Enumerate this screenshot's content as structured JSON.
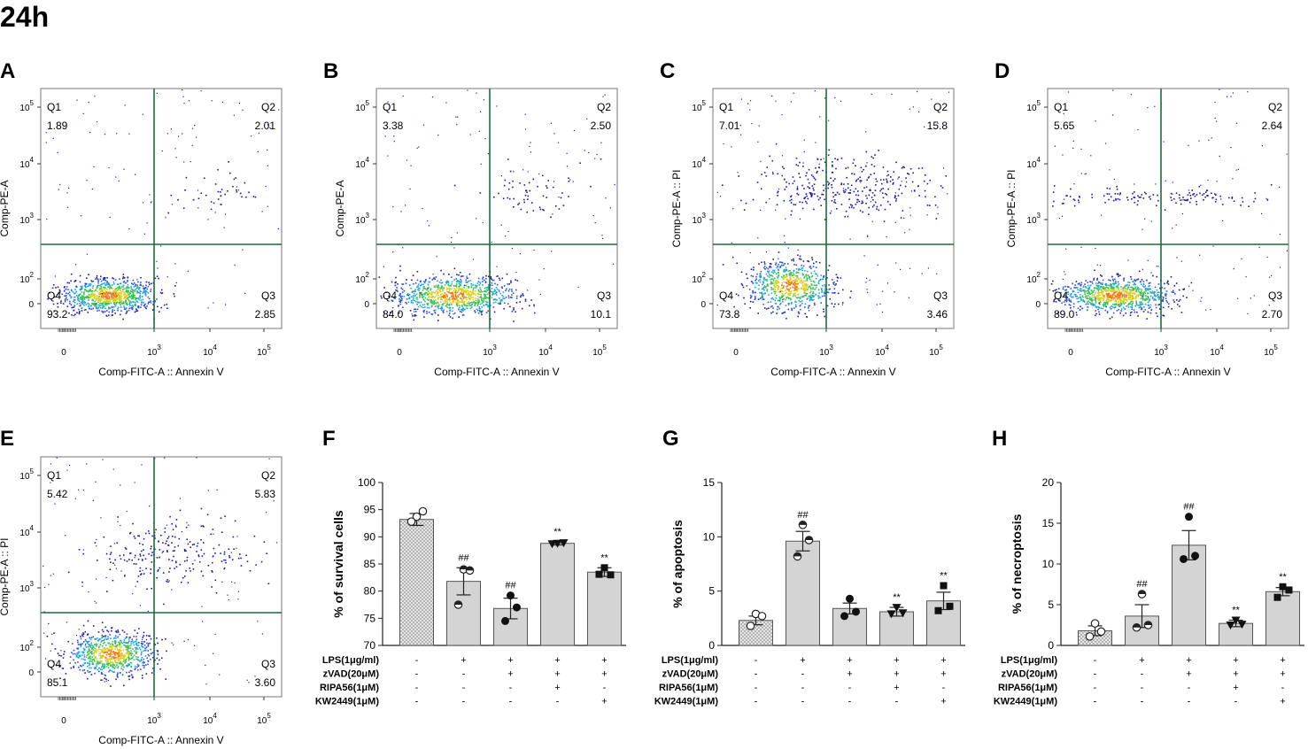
{
  "figure_title": "24h",
  "flow_common": {
    "quadrant_names": [
      "Q1",
      "Q2",
      "Q3",
      "Q4"
    ],
    "x_label": "Comp-FITC-A :: Annexin V",
    "x_ticks": [
      "0",
      "10",
      "10",
      "10"
    ],
    "x_tick_exps": [
      "",
      "3",
      "4",
      "5"
    ],
    "y_ticks": [
      "0",
      "10",
      "10",
      "10",
      "10"
    ],
    "y_tick_exps": [
      "",
      "2",
      "3",
      "4",
      "5"
    ]
  },
  "flow_panels": [
    {
      "letter": "A",
      "y_label": "Comp-PE-A",
      "q1": "1.89",
      "q2": "2.01",
      "q3": "2.85",
      "q4": "93.2"
    },
    {
      "letter": "B",
      "y_label": "Comp-PE-A",
      "q1": "3.38",
      "q2": "2.50",
      "q3": "10.1",
      "q4": "84.0"
    },
    {
      "letter": "C",
      "y_label": "Comp-PE-A :: PI",
      "q1": "7.01",
      "q2": "15.8",
      "q3": "3.46",
      "q4": "73.8"
    },
    {
      "letter": "D",
      "y_label": "Comp-PE-A :: PI",
      "q1": "5.65",
      "q2": "2.64",
      "q3": "2.70",
      "q4": "89.0"
    },
    {
      "letter": "E",
      "y_label": "Comp-PE-A :: PI",
      "q1": "5.42",
      "q2": "5.83",
      "q3": "3.60",
      "q4": "85.1"
    }
  ],
  "treatments": {
    "labels": [
      "LPS(1μg/ml)",
      "zVAD(20μM)",
      "RIPA56(1μM)",
      "KW2449(1μM)"
    ],
    "signs": [
      [
        "-",
        "+",
        "+",
        "+",
        "+"
      ],
      [
        "-",
        "-",
        "+",
        "+",
        "+"
      ],
      [
        "-",
        "-",
        "-",
        "+",
        "-"
      ],
      [
        "-",
        "-",
        "-",
        "-",
        "+"
      ]
    ]
  },
  "chart_data": [
    {
      "panel": "F",
      "type": "bar",
      "ylabel": "% of survival cells",
      "ylim": [
        70,
        100
      ],
      "yticks": [
        70,
        75,
        80,
        85,
        90,
        95,
        100
      ],
      "values": [
        93.2,
        81.8,
        76.8,
        88.8,
        83.5
      ],
      "errors": [
        1.1,
        2.5,
        1.9,
        0.3,
        0.8
      ],
      "points": [
        [
          93.7,
          94.7,
          92.8
        ],
        [
          84.0,
          83.8,
          77.5
        ],
        [
          79.2,
          77.0,
          74.5
        ],
        [
          88.8,
          88.9,
          88.7
        ],
        [
          84.3,
          83.0,
          83.1
        ]
      ],
      "markers": [
        "open-circle",
        "half-circle",
        "filled-circle",
        "triangle",
        "square"
      ],
      "annotations": [
        "",
        "##",
        "##",
        "**",
        "**"
      ]
    },
    {
      "panel": "G",
      "type": "bar",
      "ylabel": "% of apoptosis",
      "ylim": [
        0,
        15
      ],
      "yticks": [
        0,
        5,
        10,
        15
      ],
      "values": [
        2.3,
        9.6,
        3.4,
        3.1,
        4.1
      ],
      "errors": [
        0.4,
        0.9,
        0.5,
        0.4,
        0.8
      ],
      "points": [
        [
          2.9,
          2.7,
          1.8
        ],
        [
          11.1,
          9.7,
          8.2
        ],
        [
          4.3,
          3.1,
          2.7
        ],
        [
          3.5,
          3.0,
          2.9
        ],
        [
          5.5,
          3.6,
          3.2
        ]
      ],
      "markers": [
        "open-circle",
        "half-circle",
        "filled-circle",
        "triangle",
        "square"
      ],
      "annotations": [
        "",
        "##",
        "",
        "**",
        "**"
      ]
    },
    {
      "panel": "H",
      "type": "bar",
      "ylabel": "% of necroptosis",
      "ylim": [
        0,
        20
      ],
      "yticks": [
        0,
        5,
        10,
        15,
        20
      ],
      "values": [
        1.8,
        3.6,
        12.3,
        2.7,
        6.6
      ],
      "errors": [
        0.6,
        1.4,
        1.8,
        0.4,
        0.5
      ],
      "points": [
        [
          2.7,
          1.7,
          1.1
        ],
        [
          6.3,
          2.5,
          2.2
        ],
        [
          15.8,
          11.0,
          10.6
        ],
        [
          3.1,
          2.6,
          2.5
        ],
        [
          7.2,
          6.8,
          5.9
        ]
      ],
      "markers": [
        "open-circle",
        "half-circle",
        "filled-circle",
        "triangle",
        "square"
      ],
      "annotations": [
        "",
        "##",
        "##",
        "**",
        "**"
      ]
    }
  ]
}
